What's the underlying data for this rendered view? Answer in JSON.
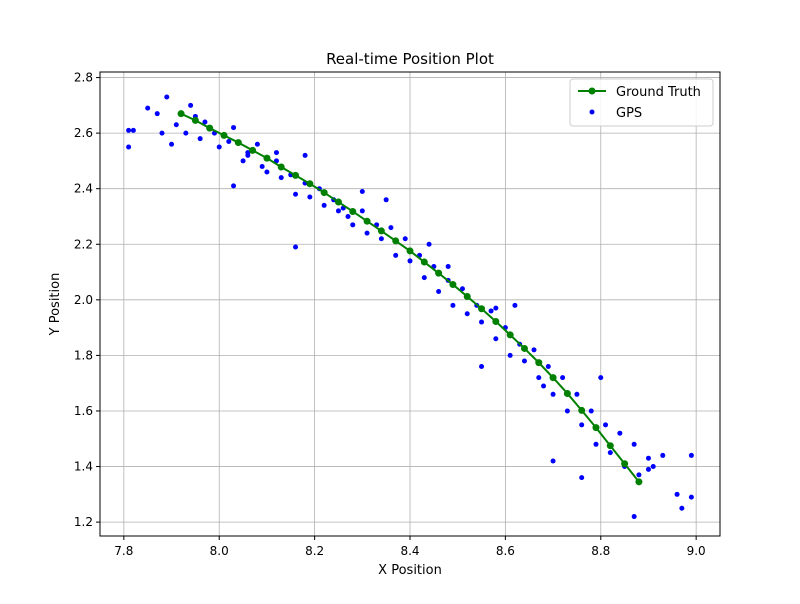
{
  "chart_data": {
    "type": "scatter",
    "title": "Real-time Position Plot",
    "xlabel": "X Position",
    "ylabel": "Y Position",
    "xlim": [
      7.75,
      9.05
    ],
    "ylim": [
      1.15,
      2.82
    ],
    "xticks": [
      7.8,
      8.0,
      8.2,
      8.4,
      8.6,
      8.8,
      9.0
    ],
    "xtick_labels": [
      "7.8",
      "8.0",
      "8.2",
      "8.4",
      "8.6",
      "8.8",
      "9.0"
    ],
    "yticks": [
      1.2,
      1.4,
      1.6,
      1.8,
      2.0,
      2.2,
      2.4,
      2.6,
      2.8
    ],
    "ytick_labels": [
      "1.2",
      "1.4",
      "1.6",
      "1.8",
      "2.0",
      "2.2",
      "2.4",
      "2.6",
      "2.8"
    ],
    "grid": true,
    "legend_position": "top-right",
    "series": [
      {
        "name": "Ground Truth",
        "kind": "line-with-markers",
        "color": "#008000",
        "x": [
          7.92,
          7.95,
          7.98,
          8.01,
          8.04,
          8.07,
          8.1,
          8.13,
          8.16,
          8.19,
          8.22,
          8.25,
          8.28,
          8.31,
          8.34,
          8.37,
          8.4,
          8.43,
          8.46,
          8.49,
          8.52,
          8.55,
          8.58,
          8.61,
          8.64,
          8.67,
          8.7,
          8.73,
          8.76,
          8.79,
          8.82,
          8.85,
          8.88
        ],
        "y": [
          2.67,
          2.646,
          2.618,
          2.592,
          2.566,
          2.538,
          2.51,
          2.478,
          2.448,
          2.418,
          2.386,
          2.352,
          2.318,
          2.283,
          2.248,
          2.212,
          2.176,
          2.136,
          2.096,
          2.055,
          2.012,
          1.968,
          1.922,
          1.874,
          1.825,
          1.774,
          1.72,
          1.663,
          1.602,
          1.54,
          1.475,
          1.41,
          1.345
        ]
      },
      {
        "name": "GPS",
        "kind": "scatter",
        "color": "#0000ff",
        "x": [
          7.81,
          7.82,
          7.81,
          7.85,
          7.87,
          7.88,
          7.89,
          7.9,
          7.91,
          7.93,
          7.94,
          7.96,
          7.97,
          7.99,
          8.0,
          8.02,
          8.03,
          8.05,
          8.06,
          8.08,
          8.09,
          8.1,
          8.12,
          8.13,
          8.15,
          8.16,
          8.18,
          8.19,
          8.21,
          8.22,
          8.24,
          8.25,
          8.27,
          8.28,
          8.3,
          8.31,
          8.33,
          8.34,
          8.36,
          8.37,
          8.39,
          8.4,
          8.42,
          8.43,
          8.45,
          8.46,
          8.48,
          8.49,
          8.51,
          8.52,
          8.54,
          8.55,
          8.57,
          8.58,
          8.6,
          8.61,
          8.63,
          8.64,
          8.66,
          8.67,
          8.69,
          8.7,
          8.72,
          8.73,
          8.75,
          8.76,
          8.78,
          8.79,
          8.81,
          8.82,
          8.84,
          8.85,
          8.87,
          8.88,
          8.9,
          8.91,
          8.93,
          8.96,
          8.99,
          8.99,
          8.97,
          8.87,
          8.9,
          8.06,
          8.16,
          8.35,
          8.55,
          8.7,
          8.76,
          8.18,
          8.03,
          8.44,
          8.62,
          8.3,
          8.48,
          8.8,
          8.12,
          7.95,
          8.26,
          8.58,
          8.68
        ],
        "y": [
          2.55,
          2.61,
          2.61,
          2.69,
          2.67,
          2.6,
          2.73,
          2.56,
          2.63,
          2.6,
          2.7,
          2.58,
          2.64,
          2.6,
          2.55,
          2.57,
          2.62,
          2.5,
          2.53,
          2.56,
          2.48,
          2.46,
          2.5,
          2.44,
          2.45,
          2.38,
          2.42,
          2.37,
          2.4,
          2.34,
          2.36,
          2.32,
          2.3,
          2.27,
          2.32,
          2.24,
          2.27,
          2.22,
          2.26,
          2.16,
          2.22,
          2.14,
          2.16,
          2.08,
          2.12,
          2.03,
          2.07,
          1.98,
          2.04,
          1.95,
          1.98,
          1.92,
          1.96,
          1.86,
          1.9,
          1.8,
          1.84,
          1.78,
          1.82,
          1.72,
          1.76,
          1.66,
          1.72,
          1.6,
          1.66,
          1.55,
          1.6,
          1.48,
          1.55,
          1.45,
          1.52,
          1.4,
          1.48,
          1.37,
          1.43,
          1.4,
          1.44,
          1.3,
          1.29,
          1.44,
          1.25,
          1.22,
          1.39,
          2.52,
          2.19,
          2.36,
          1.76,
          1.42,
          1.36,
          2.52,
          2.41,
          2.2,
          1.98,
          2.39,
          2.12,
          1.72,
          2.53,
          2.66,
          2.33,
          1.97,
          1.69
        ]
      }
    ]
  }
}
